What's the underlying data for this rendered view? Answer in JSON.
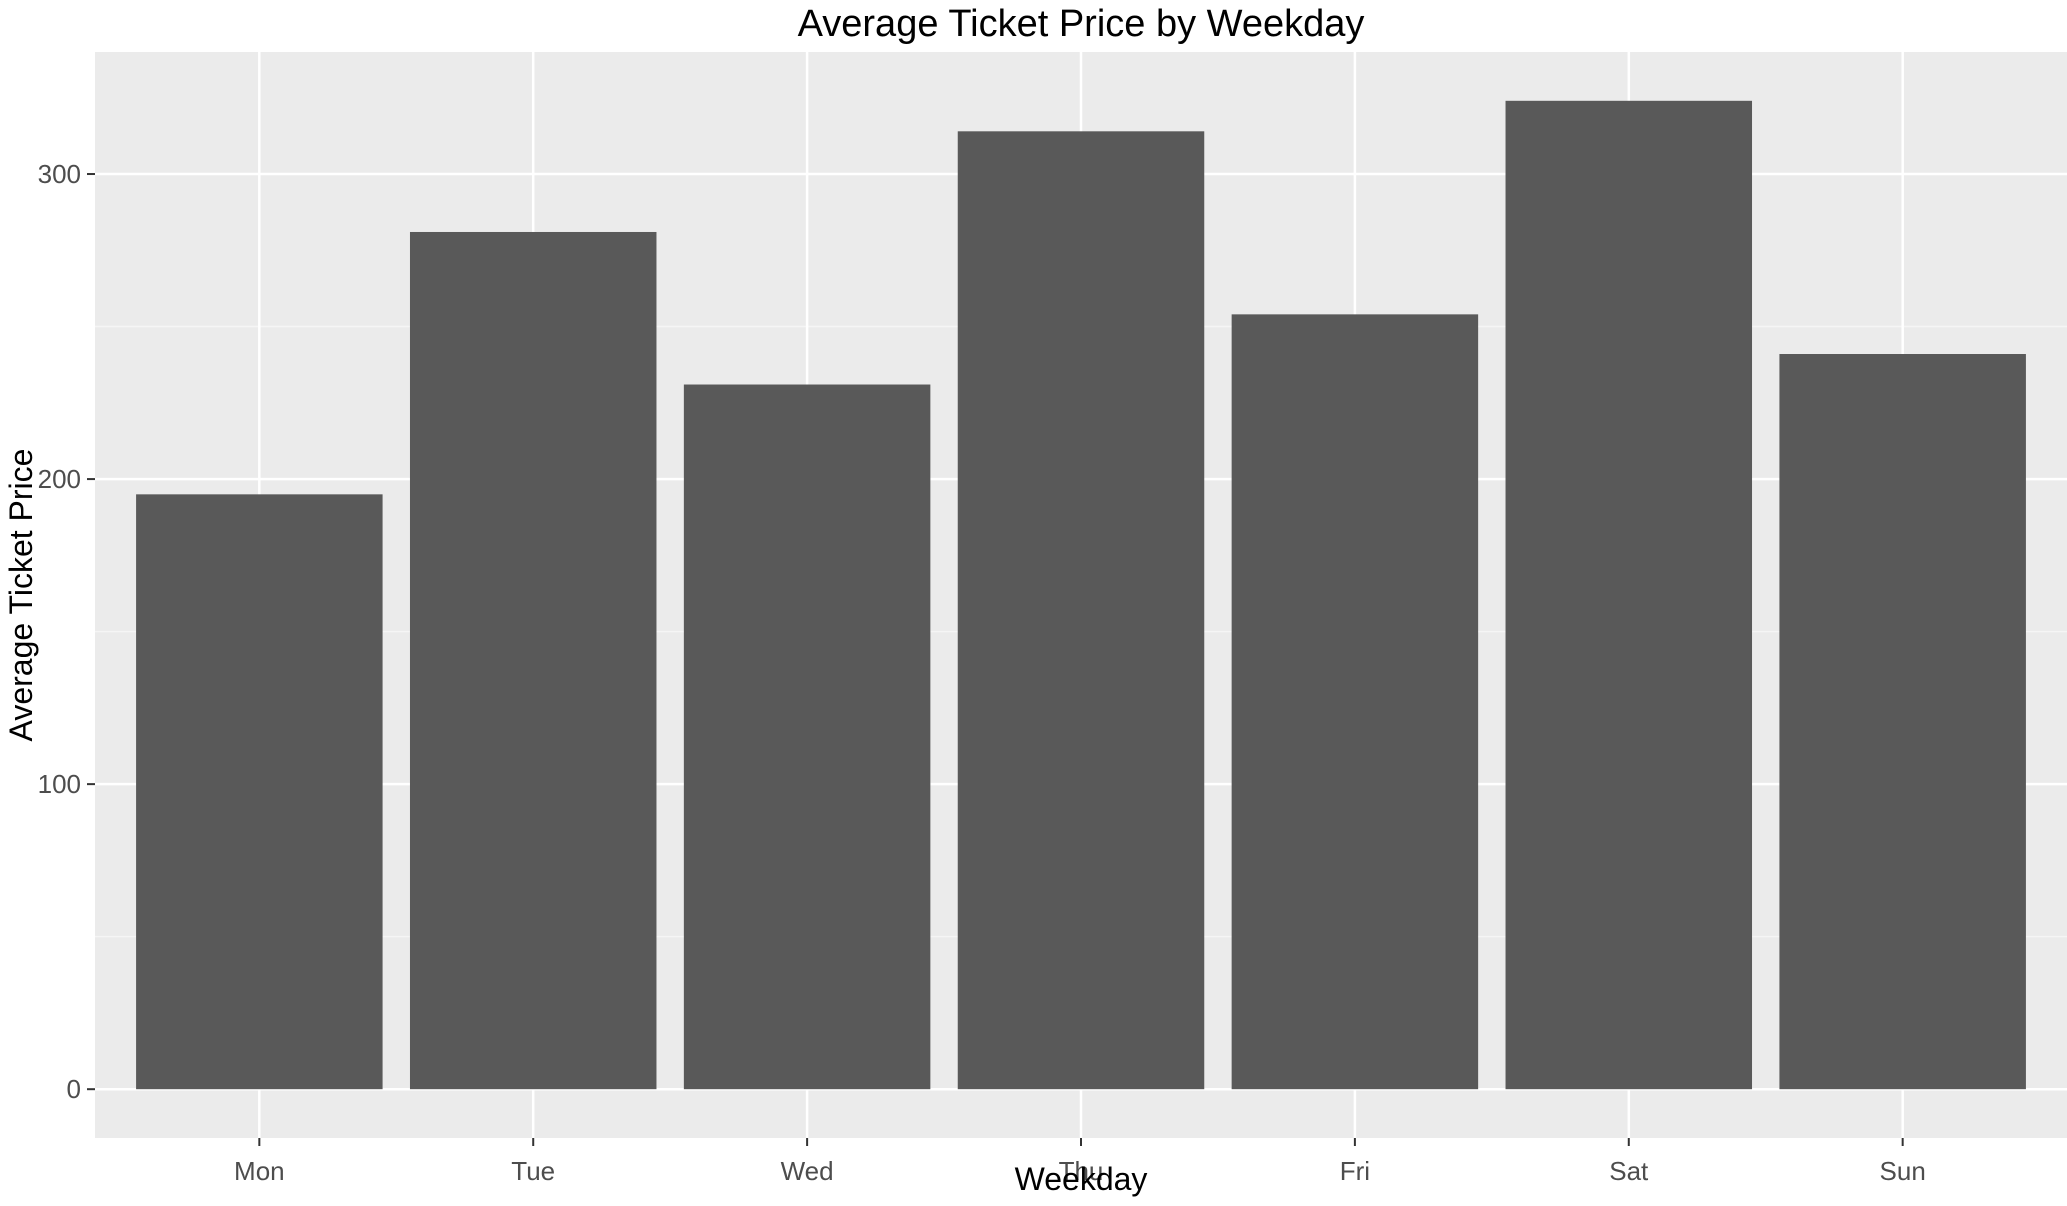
{
  "chart_data": {
    "type": "bar",
    "title": "Average Ticket Price by Weekday",
    "xlabel": "Weekday",
    "ylabel": "Average Ticket Price",
    "categories": [
      "Mon",
      "Tue",
      "Wed",
      "Thu",
      "Fri",
      "Sat",
      "Sun"
    ],
    "values": [
      195,
      281,
      231,
      314,
      254,
      324,
      241
    ],
    "ylim": [
      -16,
      340
    ],
    "yticks": [
      0,
      100,
      200,
      300
    ],
    "ytick_labels": [
      "0",
      "100",
      "200",
      "300"
    ],
    "grid": true,
    "legend": "none",
    "colors": {
      "bar": "#595959",
      "panel_background": "#ebebeb",
      "grid_major": "#ffffff",
      "grid_minor": "#f5f5f5",
      "tick_mark": "#333333",
      "page_background": "#ffffff"
    }
  }
}
